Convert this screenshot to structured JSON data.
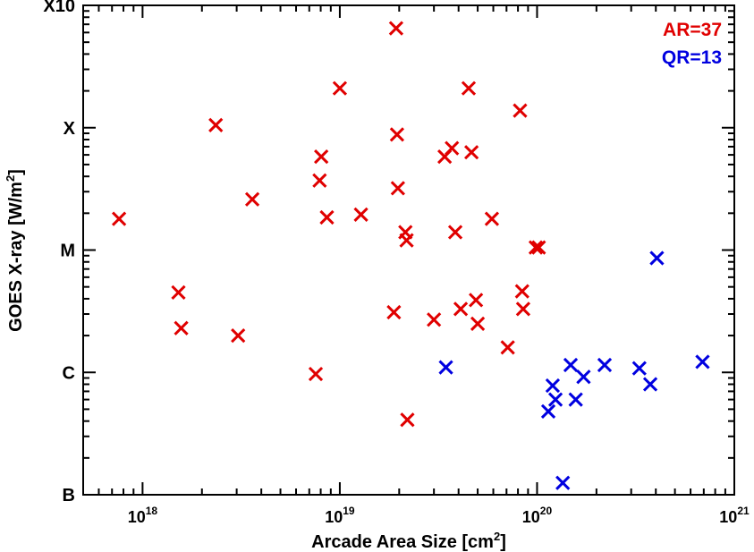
{
  "chart_data": {
    "type": "scatter",
    "title": "",
    "xlabel": "Arcade Area Size [cm",
    "xlabel_sup": "2",
    "xlabel_end": "]",
    "ylabel": "GOES X-ray [W/m",
    "ylabel_sup": "2",
    "ylabel_end": "]",
    "xscale": "log",
    "xlim": [
      5e+17,
      1e+21
    ],
    "yscale": "log",
    "ylim": [
      1e-07,
      0.001
    ],
    "grid": false,
    "legend_position": "top-right",
    "x_ticks": [
      {
        "value": 1e+18,
        "base": "10",
        "exp": "18"
      },
      {
        "value": 1e+19,
        "base": "10",
        "exp": "19"
      },
      {
        "value": 1e+20,
        "base": "10",
        "exp": "20"
      },
      {
        "value": 1e+21,
        "base": "10",
        "exp": "21"
      }
    ],
    "y_ticks": [
      {
        "value": 1e-07,
        "label": "B"
      },
      {
        "value": 1e-06,
        "label": "C"
      },
      {
        "value": 1e-05,
        "label": "M"
      },
      {
        "value": 0.0001,
        "label": "X"
      },
      {
        "value": 0.001,
        "label": "X10"
      }
    ],
    "series": [
      {
        "name": "AR=37",
        "color": "#e00000",
        "marker": "x",
        "points": [
          {
            "x": 7.6e+17,
            "y": 1.8e-05
          },
          {
            "x": 1.52e+18,
            "y": 4.5e-06
          },
          {
            "x": 1.57e+18,
            "y": 2.3e-06
          },
          {
            "x": 2.35e+18,
            "y": 0.000105
          },
          {
            "x": 3.05e+18,
            "y": 2e-06
          },
          {
            "x": 3.6e+18,
            "y": 2.6e-05
          },
          {
            "x": 7.55e+18,
            "y": 9.7e-07
          },
          {
            "x": 7.9e+18,
            "y": 3.7e-05
          },
          {
            "x": 8.05e+18,
            "y": 5.8e-05
          },
          {
            "x": 8.6e+18,
            "y": 1.85e-05
          },
          {
            "x": 1e+19,
            "y": 0.00021
          },
          {
            "x": 1.28e+19,
            "y": 1.95e-05
          },
          {
            "x": 1.88e+19,
            "y": 3.1e-06
          },
          {
            "x": 1.93e+19,
            "y": 0.00065
          },
          {
            "x": 1.95e+19,
            "y": 8.8e-05
          },
          {
            "x": 1.97e+19,
            "y": 3.2e-05
          },
          {
            "x": 2.15e+19,
            "y": 1.4e-05
          },
          {
            "x": 2.18e+19,
            "y": 1.2e-05
          },
          {
            "x": 2.2e+19,
            "y": 4.1e-07
          },
          {
            "x": 3e+19,
            "y": 2.7e-06
          },
          {
            "x": 3.4e+19,
            "y": 5.8e-05
          },
          {
            "x": 3.7e+19,
            "y": 6.8e-05
          },
          {
            "x": 3.85e+19,
            "y": 1.4e-05
          },
          {
            "x": 4.1e+19,
            "y": 3.3e-06
          },
          {
            "x": 4.5e+19,
            "y": 0.00021
          },
          {
            "x": 4.65e+19,
            "y": 6.3e-05
          },
          {
            "x": 4.9e+19,
            "y": 3.9e-06
          },
          {
            "x": 5e+19,
            "y": 2.5e-06
          },
          {
            "x": 5.9e+19,
            "y": 1.8e-05
          },
          {
            "x": 7.1e+19,
            "y": 1.6e-06
          },
          {
            "x": 8.2e+19,
            "y": 0.000138
          },
          {
            "x": 8.4e+19,
            "y": 4.6e-06
          },
          {
            "x": 8.5e+19,
            "y": 3.3e-06
          },
          {
            "x": 9.85e+19,
            "y": 1.05e-05
          },
          {
            "x": 1.02e+20,
            "y": 1.05e-05
          }
        ]
      },
      {
        "name": "QR=13",
        "color": "#0000e0",
        "marker": "x",
        "points": [
          {
            "x": 3.45e+19,
            "y": 1.1e-06
          },
          {
            "x": 1.14e+20,
            "y": 4.8e-07
          },
          {
            "x": 1.2e+20,
            "y": 7.8e-07
          },
          {
            "x": 1.24e+20,
            "y": 6e-07
          },
          {
            "x": 1.35e+20,
            "y": 1.25e-07
          },
          {
            "x": 1.48e+20,
            "y": 1.15e-06
          },
          {
            "x": 1.57e+20,
            "y": 6e-07
          },
          {
            "x": 1.72e+20,
            "y": 9.2e-07
          },
          {
            "x": 2.2e+20,
            "y": 1.15e-06
          },
          {
            "x": 3.3e+20,
            "y": 1.08e-06
          },
          {
            "x": 3.75e+20,
            "y": 8e-07
          },
          {
            "x": 4.05e+20,
            "y": 8.6e-06
          },
          {
            "x": 6.9e+20,
            "y": 1.22e-06
          }
        ]
      }
    ]
  }
}
